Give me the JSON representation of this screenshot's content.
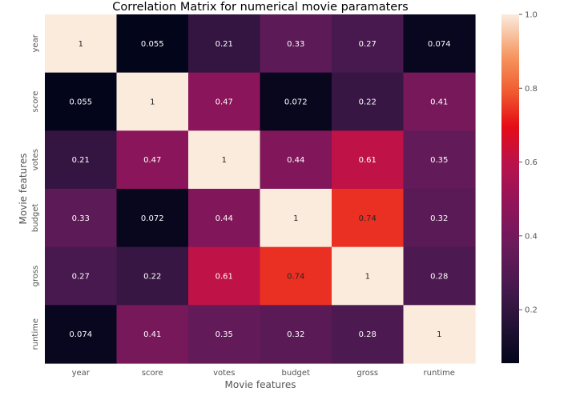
{
  "chart_data": {
    "type": "heatmap",
    "title": "Correlation Matrix for numerical movie paramaters",
    "xlabel": "Movie features",
    "ylabel": "Movie features",
    "categories": [
      "year",
      "score",
      "votes",
      "budget",
      "gross",
      "runtime"
    ],
    "values": [
      [
        1,
        0.055,
        0.21,
        0.33,
        0.27,
        0.074
      ],
      [
        0.055,
        1,
        0.47,
        0.072,
        0.22,
        0.41
      ],
      [
        0.21,
        0.47,
        1,
        0.44,
        0.61,
        0.35
      ],
      [
        0.33,
        0.072,
        0.44,
        1,
        0.74,
        0.32
      ],
      [
        0.27,
        0.22,
        0.61,
        0.74,
        1,
        0.28
      ],
      [
        0.074,
        0.41,
        0.35,
        0.32,
        0.28,
        1
      ]
    ],
    "value_labels": [
      [
        "1",
        "0.055",
        "0.21",
        "0.33",
        "0.27",
        "0.074"
      ],
      [
        "0.055",
        "1",
        "0.47",
        "0.072",
        "0.22",
        "0.41"
      ],
      [
        "0.21",
        "0.47",
        "1",
        "0.44",
        "0.61",
        "0.35"
      ],
      [
        "0.33",
        "0.072",
        "0.44",
        "1",
        "0.74",
        "0.32"
      ],
      [
        "0.27",
        "0.22",
        "0.61",
        "0.74",
        "1",
        "0.28"
      ],
      [
        "0.074",
        "0.41",
        "0.35",
        "0.32",
        "0.28",
        "1"
      ]
    ],
    "colorscale": "rocket",
    "color_range": [
      0.055,
      1
    ],
    "colorbar_ticks": [
      0.2,
      0.4,
      0.6,
      0.8,
      1.0
    ],
    "colorbar_tick_labels": [
      "0.2",
      "0.4",
      "0.6",
      "0.8",
      "1.0"
    ],
    "colorbar_position": "right",
    "grid": false
  }
}
